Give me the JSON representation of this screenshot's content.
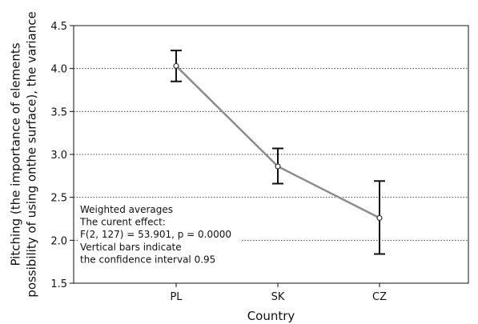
{
  "chart_data": {
    "type": "line",
    "categories": [
      "PL",
      "SK",
      "CZ"
    ],
    "series": [
      {
        "values": [
          4.03,
          2.86,
          2.26
        ],
        "ci_lower": [
          3.85,
          2.66,
          1.84
        ],
        "ci_upper": [
          4.21,
          3.07,
          2.69
        ]
      }
    ],
    "xlabel": "Country",
    "ylabel_lines": [
      "Pitching (the importance of elements",
      "possibility of using onthe surface), the variance"
    ],
    "ylim": [
      1.5,
      4.5
    ],
    "yticks": [
      "1.5",
      "2.0",
      "2.5",
      "3.0",
      "3.5",
      "4.0",
      "4.5"
    ],
    "grid": "horizontal-dotted",
    "line_color": "#8c8c8c",
    "errorbar_color": "#111111",
    "annotation": [
      "Weighted averages",
      "The curent effect:",
      "F(2, 127) = 53.901, p =  0.0000",
      "Vertical bars indicate",
      "the confidence interval 0.95"
    ]
  }
}
